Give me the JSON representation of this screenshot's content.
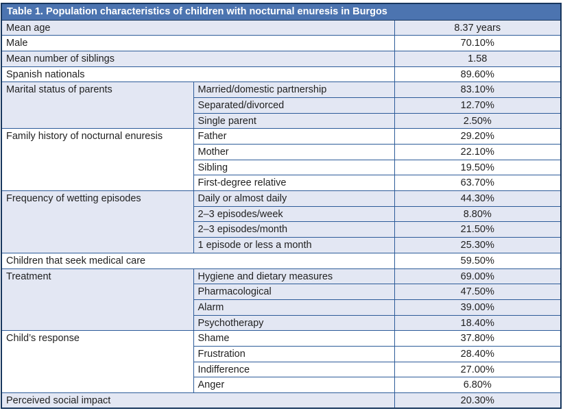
{
  "title": {
    "prefix": "Table 1.",
    "rest": "Population characteristics of children with nocturnal enuresis in Burgos"
  },
  "colors": {
    "header_bg": "#4c74b0",
    "header_text": "#ffffff",
    "outer_border": "#17365d",
    "inner_border": "#2b5a98",
    "shaded_row_bg": "#e3e7f3",
    "text": "#1f1f1f"
  },
  "columns": {
    "category_width": 280,
    "subcategory_width": 293,
    "value_width": 243
  },
  "groups": [
    {
      "category": "Mean age",
      "shaded": true,
      "items": [
        {
          "label": null,
          "value": "8.37 years"
        }
      ]
    },
    {
      "category": "Male",
      "shaded": false,
      "items": [
        {
          "label": null,
          "value": "70.10%"
        }
      ]
    },
    {
      "category": "Mean number of siblings",
      "shaded": true,
      "items": [
        {
          "label": null,
          "value": "1.58"
        }
      ]
    },
    {
      "category": "Spanish nationals",
      "shaded": false,
      "items": [
        {
          "label": null,
          "value": "89.60%"
        }
      ]
    },
    {
      "category": "Marital status of parents",
      "shaded": true,
      "items": [
        {
          "label": "Married/domestic partnership",
          "value": "83.10%"
        },
        {
          "label": "Separated/divorced",
          "value": "12.70%"
        },
        {
          "label": "Single parent",
          "value": "2.50%"
        }
      ]
    },
    {
      "category": "Family history of nocturnal enuresis",
      "shaded": false,
      "items": [
        {
          "label": "Father",
          "value": "29.20%"
        },
        {
          "label": "Mother",
          "value": "22.10%"
        },
        {
          "label": "Sibling",
          "value": "19.50%"
        },
        {
          "label": "First-degree relative",
          "value": "63.70%"
        }
      ]
    },
    {
      "category": "Frequency of wetting episodes",
      "shaded": true,
      "items": [
        {
          "label": "Daily or almost daily",
          "value": "44.30%"
        },
        {
          "label": "2–3 episodes/week",
          "value": "8.80%"
        },
        {
          "label": "2–3 episodes/month",
          "value": "21.50%"
        },
        {
          "label": "1 episode or less a month",
          "value": "25.30%"
        }
      ]
    },
    {
      "category": "Children that seek medical care",
      "shaded": false,
      "items": [
        {
          "label": null,
          "value": "59.50%"
        }
      ]
    },
    {
      "category": "Treatment",
      "shaded": true,
      "items": [
        {
          "label": "Hygiene and dietary measures",
          "value": "69.00%"
        },
        {
          "label": "Pharmacological",
          "value": "47.50%"
        },
        {
          "label": "Alarm",
          "value": "39.00%"
        },
        {
          "label": "Psychotherapy",
          "value": "18.40%"
        }
      ]
    },
    {
      "category": "Child’s response",
      "shaded": false,
      "items": [
        {
          "label": "Shame",
          "value": "37.80%"
        },
        {
          "label": "Frustration",
          "value": "28.40%"
        },
        {
          "label": "Indifference",
          "value": "27.00%"
        },
        {
          "label": "Anger",
          "value": "6.80%"
        }
      ]
    },
    {
      "category": "Perceived social impact",
      "shaded": true,
      "items": [
        {
          "label": null,
          "value": "20.30%"
        }
      ]
    }
  ]
}
